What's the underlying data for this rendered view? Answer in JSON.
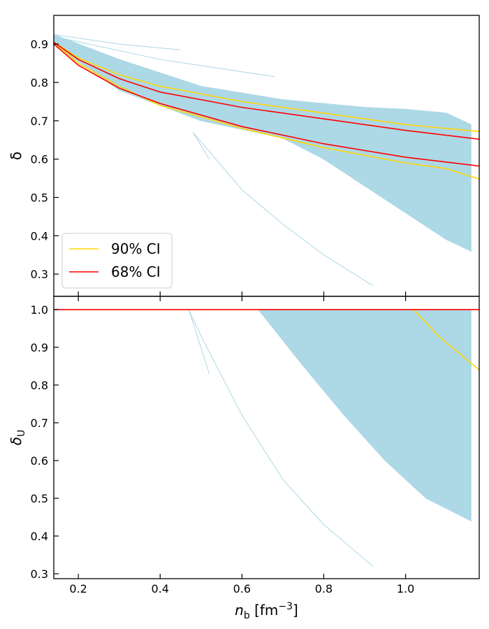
{
  "chart_data": [
    {
      "type": "line",
      "ylabel": "δ",
      "xlim": [
        0.14,
        1.18
      ],
      "ylim": [
        0.242,
        0.975
      ],
      "xticks": [
        0.2,
        0.4,
        0.6,
        0.8,
        {
          "value": 1,
          "label": "1.0"
        }
      ],
      "yticks": [
        0.3,
        0.4,
        0.5,
        0.6,
        0.7,
        0.8,
        0.9
      ],
      "legend": "lower left",
      "series": [
        {
          "color": "#add8e6",
          "x": [
            0.14,
            0.3,
            0.5,
            0.7,
            0.8,
            0.9,
            1.0,
            1.1,
            1.16
          ],
          "values": [
            0.925,
            0.86,
            0.79,
            0.755,
            0.745,
            0.735,
            0.73,
            0.72,
            0.69
          ],
          "lower": [
            0.9,
            0.78,
            0.7,
            0.655,
            0.6,
            0.53,
            0.46,
            0.39,
            0.36
          ]
        },
        {
          "color": "#add8e6",
          "x": [
            0.14,
            0.3,
            0.45
          ],
          "values": [
            0.925,
            0.9,
            0.885
          ]
        },
        {
          "color": "#add8e6",
          "x": [
            0.14,
            0.4,
            0.68
          ],
          "values": [
            0.92,
            0.86,
            0.815
          ]
        },
        {
          "color": "#add8e6",
          "x": [
            0.48,
            0.6,
            0.7,
            0.8,
            0.92
          ],
          "values": [
            0.67,
            0.52,
            0.43,
            0.35,
            0.27
          ]
        },
        {
          "color": "#add8e6",
          "x": [
            0.48,
            0.52
          ],
          "values": [
            0.67,
            0.6
          ]
        },
        {
          "name": "90% CI",
          "color": "#ffd700",
          "x": [
            0.14,
            0.2,
            0.3,
            0.4,
            0.6,
            0.8,
            1.0,
            1.18
          ],
          "values": [
            0.905,
            0.864,
            0.82,
            0.79,
            0.75,
            0.72,
            0.69,
            0.672
          ]
        },
        {
          "color": "#ffd700",
          "x": [
            0.14,
            0.2,
            0.3,
            0.4,
            0.6,
            0.8,
            1.0,
            1.1,
            1.18
          ],
          "values": [
            0.905,
            0.85,
            0.79,
            0.74,
            0.68,
            0.63,
            0.59,
            0.575,
            0.548
          ]
        },
        {
          "name": "68% CI",
          "color": "#ff0000",
          "x": [
            0.14,
            0.2,
            0.3,
            0.4,
            0.6,
            0.8,
            1.0,
            1.18
          ],
          "values": [
            0.905,
            0.86,
            0.81,
            0.775,
            0.735,
            0.705,
            0.675,
            0.652
          ]
        },
        {
          "color": "#ff0000",
          "x": [
            0.14,
            0.2,
            0.3,
            0.4,
            0.6,
            0.8,
            1.0,
            1.18
          ],
          "values": [
            0.9,
            0.845,
            0.785,
            0.745,
            0.685,
            0.64,
            0.605,
            0.582
          ]
        }
      ]
    },
    {
      "type": "line",
      "ylabel": {
        "main": "δ",
        "sub": "U"
      },
      "xlabel": {
        "main": "n",
        "sub": "b",
        "unit": " [fm",
        "sup": "−3",
        "end": "]"
      },
      "xlim": [
        0.14,
        1.18
      ],
      "ylim": [
        0.287,
        1.035
      ],
      "xticks": [
        0.2,
        0.4,
        0.6,
        0.8,
        {
          "value": 1,
          "label": "1.0"
        }
      ],
      "yticks": [
        0.3,
        0.4,
        0.5,
        0.6,
        0.7,
        0.8,
        0.9,
        {
          "value": 1,
          "label": "1.0"
        }
      ],
      "series": [
        {
          "color": "#add8e6",
          "x": [
            0.64,
            0.75,
            0.85,
            0.95,
            1.05,
            1.16
          ],
          "values": [
            1,
            1,
            1,
            1,
            1,
            1
          ],
          "lower": [
            1.0,
            0.85,
            0.72,
            0.6,
            0.5,
            0.44
          ]
        },
        {
          "color": "#add8e6",
          "x": [
            0.47,
            0.5,
            0.6,
            0.7,
            0.8,
            0.92
          ],
          "values": [
            1.0,
            0.93,
            0.72,
            0.55,
            0.43,
            0.32
          ]
        },
        {
          "color": "#add8e6",
          "x": [
            0.47,
            0.52
          ],
          "values": [
            1.0,
            0.83
          ]
        },
        {
          "color": "#ffd700",
          "x": [
            1.02,
            1.08,
            1.18
          ],
          "values": [
            1.0,
            0.93,
            0.84
          ]
        },
        {
          "color": "#ff0000",
          "x": [
            0.14,
            1.18
          ],
          "values": [
            1,
            1
          ]
        }
      ]
    }
  ]
}
